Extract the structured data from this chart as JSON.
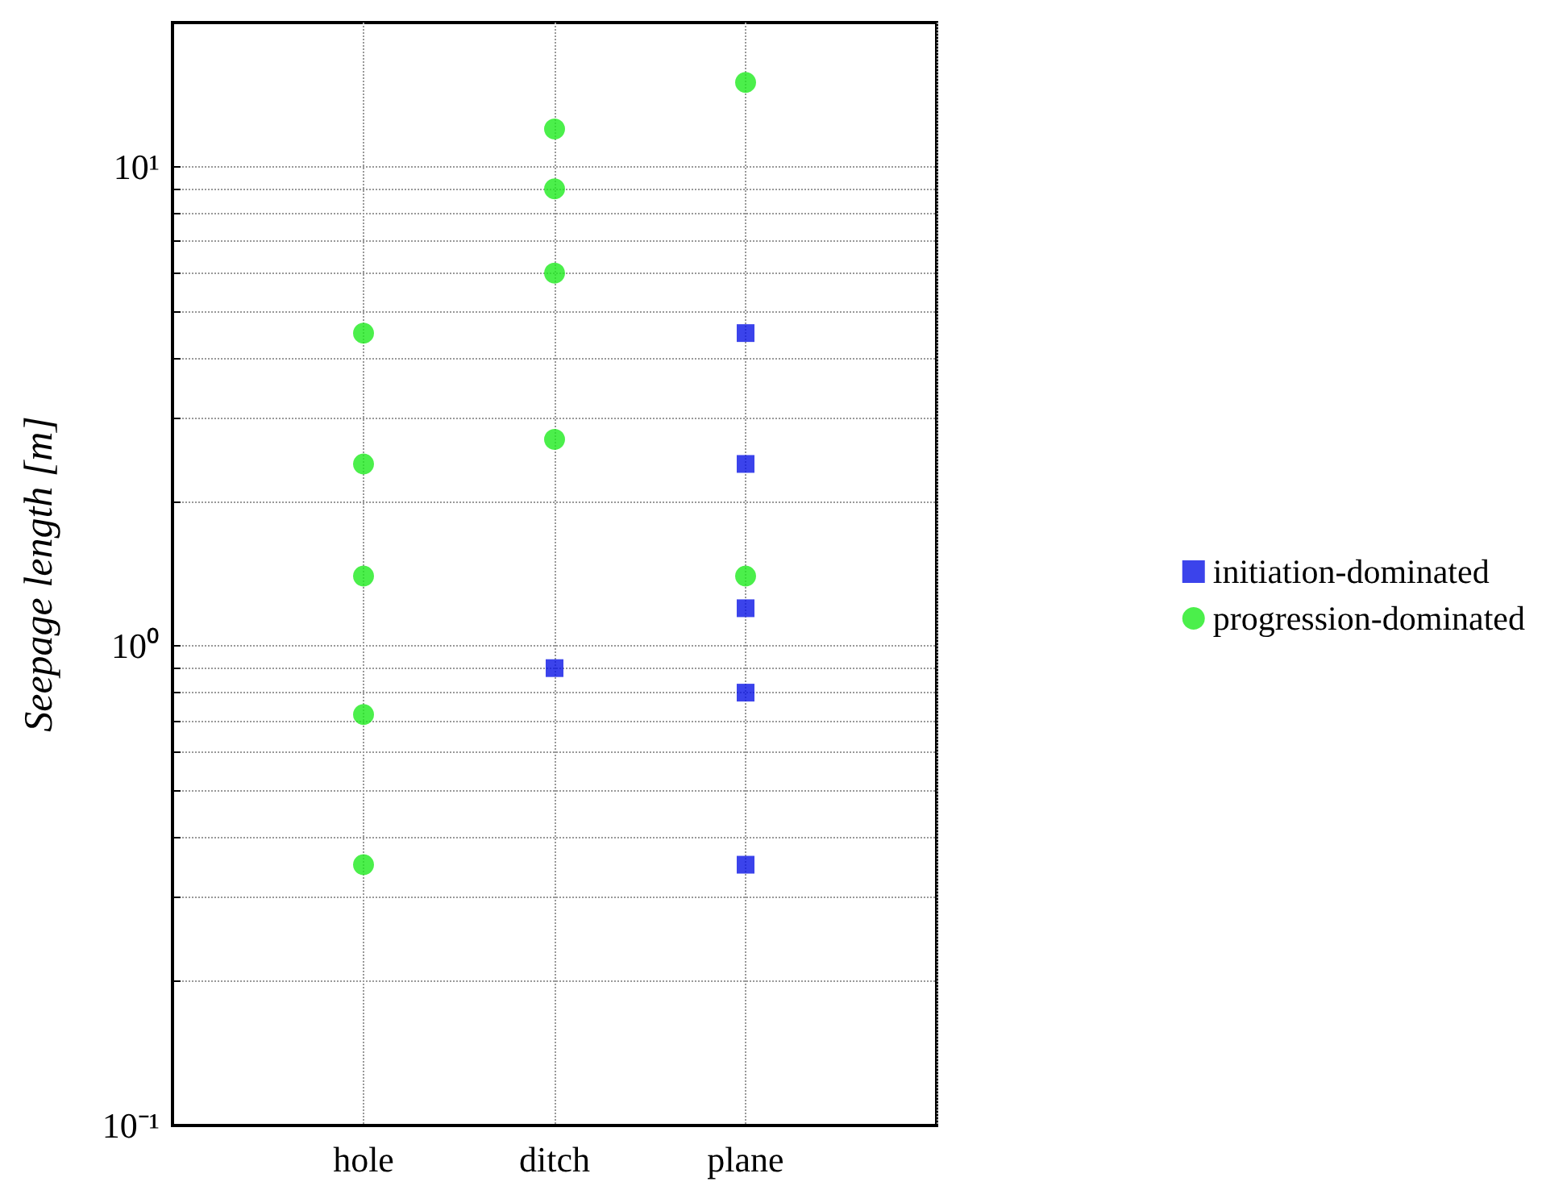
{
  "chart_data": {
    "type": "scatter",
    "ylabel": "Seepage length [m]",
    "categories": [
      null,
      "hole",
      "ditch",
      "plane",
      null
    ],
    "log": "y",
    "ylim": [
      0.1,
      20
    ],
    "yticks": [
      {
        "value": 0.1,
        "label": "10⁻¹"
      },
      {
        "value": 0.2,
        "label": null
      },
      {
        "value": 0.3,
        "label": null
      },
      {
        "value": 0.4,
        "label": null
      },
      {
        "value": 0.5,
        "label": null
      },
      {
        "value": 0.6,
        "label": null
      },
      {
        "value": 0.7,
        "label": null
      },
      {
        "value": 0.8,
        "label": null
      },
      {
        "value": 0.9,
        "label": null
      },
      {
        "value": 1,
        "label": "10⁰"
      },
      {
        "value": 2,
        "label": null
      },
      {
        "value": 3,
        "label": null
      },
      {
        "value": 4,
        "label": null
      },
      {
        "value": 5,
        "label": null
      },
      {
        "value": 6,
        "label": null
      },
      {
        "value": 7,
        "label": null
      },
      {
        "value": 8,
        "label": null
      },
      {
        "value": 9,
        "label": null
      },
      {
        "value": 10,
        "label": "10¹"
      }
    ],
    "grid": true,
    "legend": "right",
    "series": [
      {
        "name": "initiation-dominated",
        "color": "#0a14e6",
        "marker": "square",
        "x": [
          "ditch",
          "plane",
          "plane",
          "plane",
          "plane",
          "plane"
        ],
        "values": [
          0.9,
          4.5,
          2.4,
          1.2,
          0.8,
          0.35
        ]
      },
      {
        "name": "progression-dominated",
        "color": "#1eeb1e",
        "marker": "circle",
        "x": [
          "hole",
          "hole",
          "hole",
          "hole",
          "hole",
          "ditch",
          "ditch",
          "ditch",
          "ditch",
          "plane",
          "plane"
        ],
        "values": [
          4.5,
          2.4,
          1.4,
          0.72,
          0.35,
          12,
          9,
          6,
          2.7,
          15,
          1.4
        ]
      }
    ]
  }
}
